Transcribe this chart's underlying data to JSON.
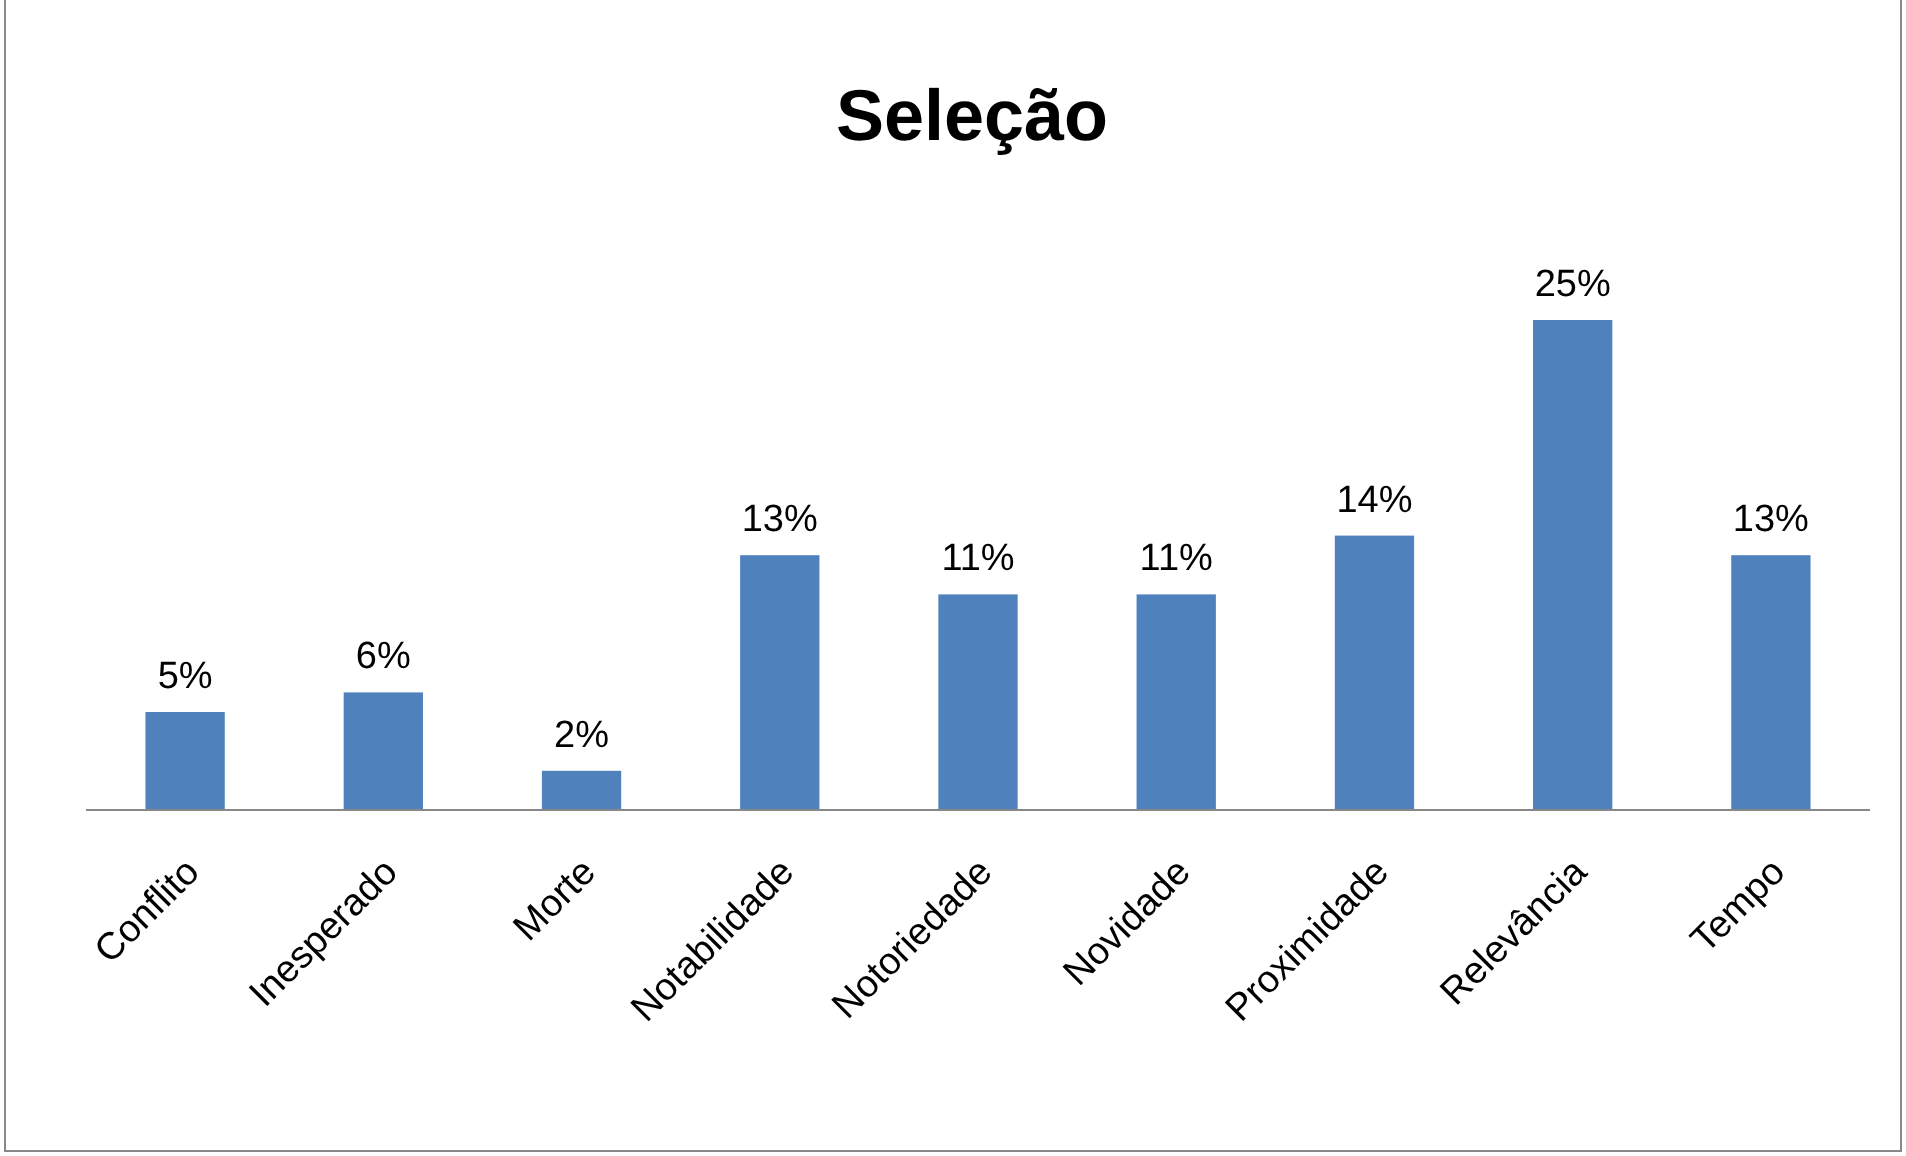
{
  "chart_data": {
    "type": "bar",
    "title": "Seleção",
    "categories": [
      "Conflito",
      "Inesperado",
      "Morte",
      "Notabilidade",
      "Notoriedade",
      "Novidade",
      "Proximidade",
      "Relevância",
      "Tempo"
    ],
    "values": [
      5,
      6,
      2,
      13,
      11,
      11,
      14,
      25,
      13
    ],
    "value_labels": [
      "5%",
      "6%",
      "2%",
      "13%",
      "11%",
      "11%",
      "14%",
      "25%",
      "13%"
    ],
    "color": "#4f81bd"
  }
}
